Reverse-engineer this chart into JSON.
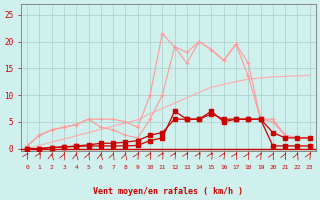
{
  "bg_color": "#cff0ec",
  "grid_color": "#aacccc",
  "x_labels": [
    0,
    1,
    2,
    3,
    4,
    5,
    6,
    7,
    8,
    9,
    10,
    11,
    12,
    13,
    14,
    15,
    16,
    17,
    18,
    19,
    20,
    21,
    22,
    23
  ],
  "xlabel": "Vent moyen/en rafales ( km/h )",
  "xlabel_color": "#cc0000",
  "ylabel_ticks": [
    0,
    5,
    10,
    15,
    20,
    25
  ],
  "ylim": [
    -0.5,
    27
  ],
  "xlim": [
    -0.5,
    23.5
  ],
  "line_diagonal_x": [
    0,
    1,
    2,
    3,
    4,
    5,
    6,
    7,
    8,
    9,
    10,
    11,
    12,
    13,
    14,
    15,
    16,
    17,
    18,
    19,
    20,
    21,
    22,
    23
  ],
  "line_diagonal_y": [
    0.0,
    0.6,
    1.2,
    1.8,
    2.4,
    3.0,
    3.6,
    4.2,
    4.8,
    5.4,
    6.5,
    7.5,
    8.5,
    9.5,
    10.5,
    11.5,
    12.0,
    12.5,
    13.0,
    13.2,
    13.4,
    13.5,
    13.6,
    13.7
  ],
  "line_diagonal_color": "#ffaaaa",
  "line_pink1_x": [
    0,
    1,
    2,
    3,
    4,
    5,
    6,
    7,
    8,
    9,
    10,
    11,
    12,
    13,
    14,
    15,
    16,
    17,
    18,
    19,
    20,
    21,
    22,
    23
  ],
  "line_pink1_y": [
    0.5,
    2.5,
    3.5,
    4.0,
    4.5,
    5.5,
    5.5,
    5.5,
    5.0,
    4.0,
    10.0,
    21.5,
    19.0,
    16.0,
    20.0,
    18.5,
    16.5,
    19.5,
    16.0,
    5.5,
    5.5,
    2.5,
    2.0,
    2.0
  ],
  "line_pink1_color": "#ff9999",
  "line_pink2_x": [
    0,
    1,
    2,
    3,
    4,
    5,
    6,
    7,
    8,
    9,
    10,
    11,
    12,
    13,
    14,
    15,
    16,
    17,
    18,
    19,
    20,
    21,
    22,
    23
  ],
  "line_pink2_y": [
    0.5,
    2.5,
    3.5,
    4.0,
    4.5,
    5.5,
    4.0,
    3.5,
    2.5,
    2.0,
    5.5,
    10.0,
    19.0,
    18.0,
    20.0,
    18.5,
    16.5,
    19.5,
    13.5,
    5.5,
    5.0,
    2.5,
    2.0,
    2.0
  ],
  "line_pink2_color": "#ff9999",
  "line_dark1_x": [
    0,
    1,
    2,
    3,
    4,
    5,
    6,
    7,
    8,
    9,
    10,
    11,
    12,
    13,
    14,
    15,
    16,
    17,
    18,
    19,
    20,
    21,
    22,
    23
  ],
  "line_dark1_y": [
    0.0,
    0.0,
    0.2,
    0.3,
    0.4,
    0.5,
    0.5,
    0.5,
    0.5,
    0.6,
    1.5,
    2.0,
    7.0,
    5.5,
    5.5,
    7.0,
    5.0,
    5.5,
    5.5,
    5.5,
    0.5,
    0.5,
    0.5,
    0.5
  ],
  "line_dark1_color": "#cc0000",
  "line_dark2_x": [
    0,
    1,
    2,
    3,
    4,
    5,
    6,
    7,
    8,
    9,
    10,
    11,
    12,
    13,
    14,
    15,
    16,
    17,
    18,
    19,
    20,
    21,
    22,
    23
  ],
  "line_dark2_y": [
    0.0,
    0.0,
    0.2,
    0.3,
    0.5,
    0.7,
    1.0,
    1.0,
    1.2,
    1.5,
    2.5,
    3.0,
    5.5,
    5.5,
    5.5,
    6.5,
    5.5,
    5.5,
    5.5,
    5.5,
    3.0,
    2.0,
    2.0,
    2.0
  ],
  "line_dark2_color": "#cc0000",
  "arrow_angles": [
    45,
    30,
    80,
    70,
    80,
    70,
    80,
    70,
    75,
    50,
    40,
    35,
    30,
    30,
    30,
    35,
    40,
    45,
    50,
    55,
    60,
    65,
    65,
    50
  ]
}
